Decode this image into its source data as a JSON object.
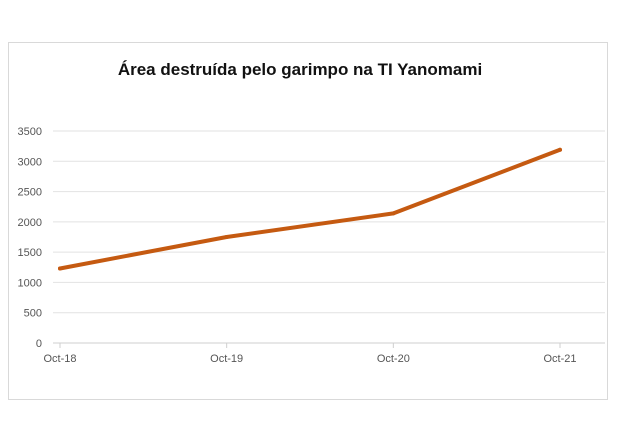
{
  "chart_data": {
    "type": "line",
    "title": "Área destruída pelo garimpo na TI Yanomami",
    "xlabel": "",
    "ylabel": "",
    "categories": [
      "Oct-18",
      "Oct-19",
      "Oct-20",
      "Oct-21"
    ],
    "series": [
      {
        "values": [
          1230,
          1750,
          2140,
          3190
        ],
        "color": "#c55a11"
      }
    ],
    "ylim": [
      0,
      3500
    ],
    "yticks": [
      0,
      500,
      1000,
      1500,
      2000,
      2500,
      3000,
      3500
    ],
    "grid": true,
    "legend": "none"
  }
}
